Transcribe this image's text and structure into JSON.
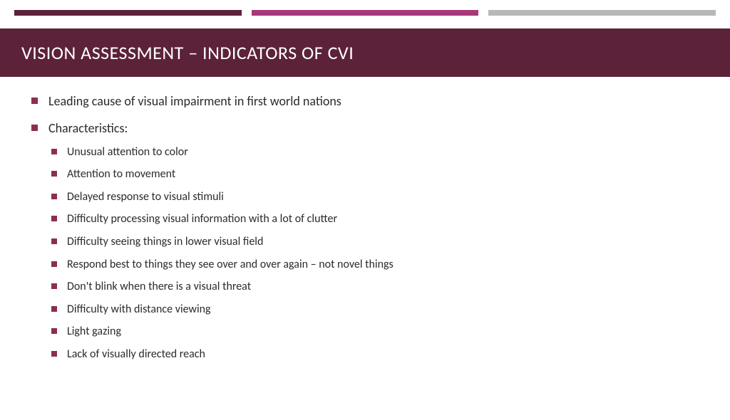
{
  "colors": {
    "accent_dark": "#5c2239",
    "accent_mid": "#a6387a",
    "accent_light": "#b7b7b7",
    "title_bg": "#5c2239",
    "title_text": "#ffffff",
    "bullet": "#8b2f52",
    "body_text": "#2b2b2b"
  },
  "title": "VISION ASSESSMENT – INDICATORS OF CVI",
  "bullets": [
    {
      "text": "Leading cause of visual impairment in first world nations"
    },
    {
      "text": "Characteristics:",
      "children": [
        "Unusual attention to color",
        "Attention to movement",
        "Delayed response to visual stimuli",
        "Difficulty processing visual information with a lot of clutter",
        "Difficulty seeing things in lower visual field",
        "Respond best to things they see over and over again – not novel things",
        "Don't blink when there is a visual threat",
        "Difficulty with distance viewing",
        "Light gazing",
        "Lack of visually directed reach"
      ]
    }
  ]
}
